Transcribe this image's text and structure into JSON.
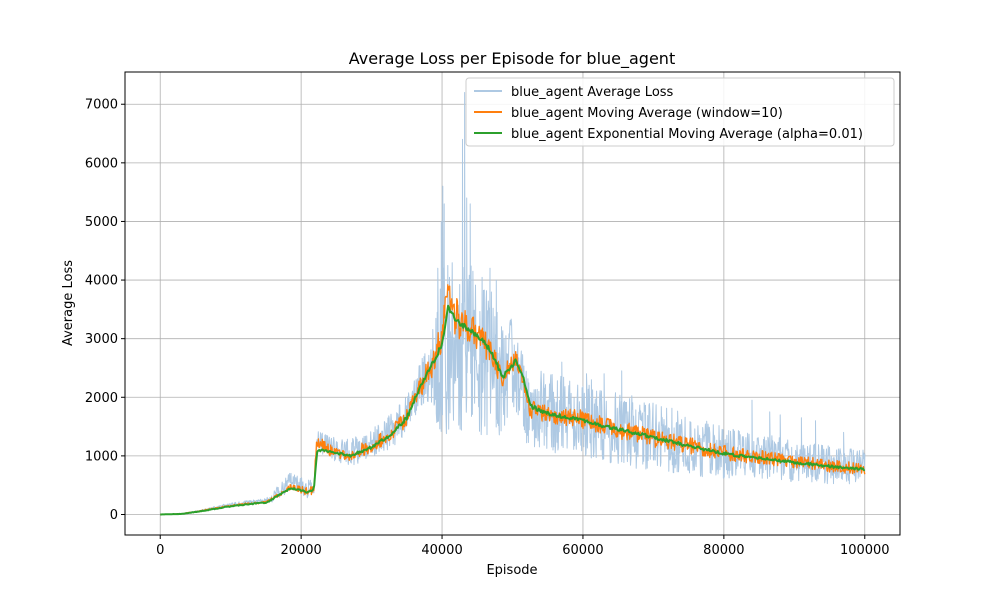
{
  "colors": {
    "raw": "#aec9e3",
    "ma": "#ff7f0e",
    "ema": "#2ca02c",
    "grid": "#b0b0b0"
  },
  "chart_data": {
    "type": "line",
    "title": "Average Loss per Episode for blue_agent",
    "xlabel": "Episode",
    "ylabel": "Average Loss",
    "xlim": [
      -5000,
      105000
    ],
    "ylim": [
      -350,
      7550
    ],
    "x_ticks": [
      0,
      20000,
      40000,
      60000,
      80000,
      100000
    ],
    "y_ticks": [
      0,
      1000,
      2000,
      3000,
      4000,
      5000,
      6000,
      7000
    ],
    "grid": true,
    "legend_position": "top-right",
    "series": [
      {
        "name": "blue_agent Average Loss",
        "role": "raw",
        "trend": [
          [
            0,
            0
          ],
          [
            3000,
            10
          ],
          [
            6000,
            70
          ],
          [
            9000,
            150
          ],
          [
            12000,
            200
          ],
          [
            15000,
            230
          ],
          [
            17000,
            380
          ],
          [
            18500,
            600
          ],
          [
            20000,
            480
          ],
          [
            21000,
            420
          ],
          [
            21800,
            500
          ],
          [
            22200,
            1250
          ],
          [
            24000,
            1150
          ],
          [
            27000,
            1050
          ],
          [
            30000,
            1200
          ],
          [
            33000,
            1450
          ],
          [
            35000,
            1700
          ],
          [
            37000,
            2300
          ],
          [
            38500,
            2500
          ],
          [
            40000,
            3000
          ],
          [
            41000,
            3000
          ],
          [
            43000,
            2900
          ],
          [
            45000,
            2750
          ],
          [
            47000,
            2600
          ],
          [
            48500,
            2300
          ],
          [
            50000,
            2550
          ],
          [
            51000,
            2300
          ],
          [
            52000,
            1900
          ],
          [
            55000,
            1750
          ],
          [
            60000,
            1650
          ],
          [
            65000,
            1450
          ],
          [
            70000,
            1350
          ],
          [
            75000,
            1200
          ],
          [
            80000,
            1050
          ],
          [
            85000,
            1000
          ],
          [
            90000,
            900
          ],
          [
            95000,
            850
          ],
          [
            100000,
            800
          ]
        ],
        "spread": [
          [
            0,
            0
          ],
          [
            15000,
            40
          ],
          [
            17000,
            150
          ],
          [
            20000,
            150
          ],
          [
            22000,
            200
          ],
          [
            30000,
            250
          ],
          [
            36000,
            350
          ],
          [
            38500,
            600
          ],
          [
            40000,
            1800
          ],
          [
            42000,
            1500
          ],
          [
            46000,
            1400
          ],
          [
            49000,
            900
          ],
          [
            51000,
            700
          ],
          [
            53000,
            700
          ],
          [
            60000,
            650
          ],
          [
            70000,
            600
          ],
          [
            80000,
            450
          ],
          [
            90000,
            350
          ],
          [
            100000,
            300
          ]
        ],
        "spikes": [
          [
            39400,
            4200
          ],
          [
            39900,
            5000
          ],
          [
            40100,
            5600
          ],
          [
            40300,
            5300
          ],
          [
            42900,
            6400
          ],
          [
            43200,
            7200
          ],
          [
            43500,
            5400
          ],
          [
            44000,
            5300
          ],
          [
            46800,
            4200
          ],
          [
            47700,
            4000
          ],
          [
            57000,
            2600
          ],
          [
            60500,
            2400
          ],
          [
            61200,
            2300
          ],
          [
            63000,
            2400
          ],
          [
            65500,
            2450
          ],
          [
            84000,
            1950
          ],
          [
            86500,
            1750
          ],
          [
            88000,
            1700
          ],
          [
            91000,
            1650
          ],
          [
            93000,
            1600
          ],
          [
            97000,
            1400
          ]
        ]
      },
      {
        "name": "blue_agent Moving Average (window=10)",
        "role": "ma",
        "trend": [
          [
            0,
            0
          ],
          [
            3000,
            10
          ],
          [
            6000,
            70
          ],
          [
            9000,
            130
          ],
          [
            12000,
            180
          ],
          [
            15000,
            210
          ],
          [
            17000,
            350
          ],
          [
            18500,
            470
          ],
          [
            20000,
            420
          ],
          [
            21000,
            390
          ],
          [
            21800,
            450
          ],
          [
            22200,
            1250
          ],
          [
            24000,
            1100
          ],
          [
            27000,
            1020
          ],
          [
            30000,
            1180
          ],
          [
            33000,
            1400
          ],
          [
            35000,
            1650
          ],
          [
            37000,
            2200
          ],
          [
            38500,
            2550
          ],
          [
            40000,
            3000
          ],
          [
            40700,
            3750
          ],
          [
            42000,
            3350
          ],
          [
            44000,
            3200
          ],
          [
            46000,
            2900
          ],
          [
            47500,
            2650
          ],
          [
            48500,
            2300
          ],
          [
            49500,
            2500
          ],
          [
            50500,
            2650
          ],
          [
            51500,
            2300
          ],
          [
            52500,
            1800
          ],
          [
            55000,
            1700
          ],
          [
            60000,
            1620
          ],
          [
            65000,
            1450
          ],
          [
            70000,
            1300
          ],
          [
            75000,
            1180
          ],
          [
            80000,
            1050
          ],
          [
            85000,
            980
          ],
          [
            90000,
            900
          ],
          [
            95000,
            830
          ],
          [
            100000,
            780
          ]
        ],
        "spread": [
          [
            0,
            0
          ],
          [
            15000,
            20
          ],
          [
            20000,
            60
          ],
          [
            22000,
            100
          ],
          [
            30000,
            120
          ],
          [
            36000,
            150
          ],
          [
            40000,
            300
          ],
          [
            42000,
            350
          ],
          [
            46000,
            250
          ],
          [
            50000,
            150
          ],
          [
            53000,
            150
          ],
          [
            60000,
            160
          ],
          [
            70000,
            150
          ],
          [
            80000,
            130
          ],
          [
            90000,
            110
          ],
          [
            100000,
            100
          ]
        ]
      },
      {
        "name": "blue_agent Exponential Moving Average (alpha=0.01)",
        "role": "ema",
        "trend": [
          [
            0,
            0
          ],
          [
            3000,
            10
          ],
          [
            6000,
            60
          ],
          [
            9000,
            120
          ],
          [
            12000,
            170
          ],
          [
            15000,
            200
          ],
          [
            17000,
            340
          ],
          [
            18500,
            450
          ],
          [
            20000,
            410
          ],
          [
            21000,
            380
          ],
          [
            21800,
            430
          ],
          [
            22300,
            1100
          ],
          [
            24000,
            1080
          ],
          [
            27000,
            1000
          ],
          [
            30000,
            1150
          ],
          [
            33000,
            1380
          ],
          [
            35000,
            1650
          ],
          [
            37000,
            2200
          ],
          [
            38500,
            2550
          ],
          [
            40000,
            2900
          ],
          [
            40800,
            3550
          ],
          [
            42000,
            3300
          ],
          [
            44000,
            3150
          ],
          [
            46000,
            2950
          ],
          [
            47500,
            2650
          ],
          [
            48500,
            2350
          ],
          [
            49500,
            2450
          ],
          [
            50500,
            2650
          ],
          [
            51500,
            2350
          ],
          [
            52500,
            1850
          ],
          [
            55000,
            1720
          ],
          [
            60000,
            1600
          ],
          [
            65000,
            1450
          ],
          [
            70000,
            1320
          ],
          [
            75000,
            1170
          ],
          [
            80000,
            1040
          ],
          [
            85000,
            960
          ],
          [
            90000,
            890
          ],
          [
            95000,
            820
          ],
          [
            100000,
            770
          ]
        ],
        "spread": [
          [
            0,
            0
          ],
          [
            20000,
            15
          ],
          [
            30000,
            25
          ],
          [
            40000,
            45
          ],
          [
            46000,
            40
          ],
          [
            60000,
            30
          ],
          [
            80000,
            25
          ],
          [
            100000,
            20
          ]
        ]
      }
    ]
  }
}
